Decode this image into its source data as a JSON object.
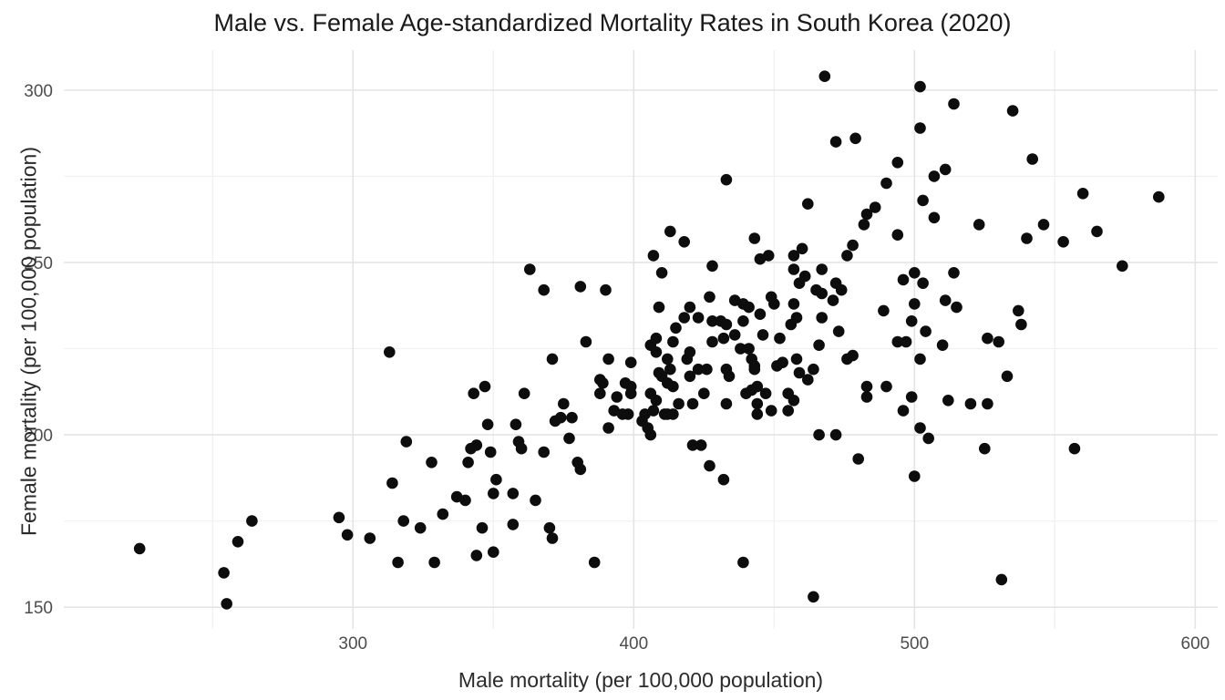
{
  "chart_data": {
    "type": "scatter",
    "title": "Male vs. Female Age-standardized Mortality Rates in South Korea (2020)",
    "xlabel": "Male mortality (per 100,000 population)",
    "ylabel": "Female mortality (per 100,000 population)",
    "xlim": [
      197,
      608
    ],
    "ylim": [
      143.7,
      311.6
    ],
    "x_ticks": [
      300,
      400,
      500,
      600
    ],
    "x_minor_ticks": [
      250,
      350,
      450,
      550
    ],
    "y_ticks": [
      150,
      200,
      250,
      300
    ],
    "y_minor_ticks": [
      175,
      225,
      275
    ],
    "grid": "on",
    "legend_position": "none",
    "point_color": "#0d0d0d",
    "point_radius": 6.3,
    "major_grid_color": "#e4e4e4",
    "minor_grid_color": "#f1f1f1",
    "tick_label_color": "#4d4d4d",
    "tick_font_size": 19,
    "background_color": "#ffffff",
    "points": [
      [
        224,
        167
      ],
      [
        254,
        160
      ],
      [
        255,
        151
      ],
      [
        259,
        169
      ],
      [
        264,
        175
      ],
      [
        295,
        176
      ],
      [
        298,
        171
      ],
      [
        306,
        170
      ],
      [
        313,
        224
      ],
      [
        314,
        186
      ],
      [
        316,
        163
      ],
      [
        318,
        175
      ],
      [
        319,
        198
      ],
      [
        324,
        173
      ],
      [
        328,
        192
      ],
      [
        329,
        163
      ],
      [
        332,
        177
      ],
      [
        337,
        182
      ],
      [
        340,
        181
      ],
      [
        341,
        192
      ],
      [
        342,
        196
      ],
      [
        343,
        212
      ],
      [
        344,
        197
      ],
      [
        344,
        165
      ],
      [
        346,
        173
      ],
      [
        347,
        214
      ],
      [
        348,
        203
      ],
      [
        349,
        195
      ],
      [
        350,
        183
      ],
      [
        350,
        166
      ],
      [
        351,
        187
      ],
      [
        357,
        183
      ],
      [
        357,
        174
      ],
      [
        358,
        203
      ],
      [
        359,
        198
      ],
      [
        360,
        196
      ],
      [
        361,
        212
      ],
      [
        363,
        248
      ],
      [
        365,
        181
      ],
      [
        368,
        242
      ],
      [
        368,
        195
      ],
      [
        370,
        173
      ],
      [
        371,
        222
      ],
      [
        371,
        170
      ],
      [
        372,
        204
      ],
      [
        374,
        205
      ],
      [
        375,
        209
      ],
      [
        377,
        199
      ],
      [
        378,
        205
      ],
      [
        380,
        192
      ],
      [
        381,
        243
      ],
      [
        381,
        190
      ],
      [
        383,
        227
      ],
      [
        386,
        163
      ],
      [
        388,
        216
      ],
      [
        388,
        212
      ],
      [
        389,
        215
      ],
      [
        390,
        242
      ],
      [
        391,
        222
      ],
      [
        391,
        202
      ],
      [
        393,
        207
      ],
      [
        394,
        211
      ],
      [
        396,
        206
      ],
      [
        397,
        215
      ],
      [
        398,
        206
      ],
      [
        399,
        221
      ],
      [
        399,
        214
      ],
      [
        399,
        212
      ],
      [
        403,
        204
      ],
      [
        404,
        206
      ],
      [
        405,
        202
      ],
      [
        406,
        200
      ],
      [
        406,
        226
      ],
      [
        406,
        212
      ],
      [
        407,
        207
      ],
      [
        407,
        252
      ],
      [
        408,
        224
      ],
      [
        408,
        210
      ],
      [
        408,
        228
      ],
      [
        409,
        237
      ],
      [
        409,
        218
      ],
      [
        410,
        247
      ],
      [
        410,
        217
      ],
      [
        411,
        206
      ],
      [
        412,
        222
      ],
      [
        412,
        215
      ],
      [
        412,
        206
      ],
      [
        413,
        259
      ],
      [
        413,
        219
      ],
      [
        414,
        206
      ],
      [
        414,
        227
      ],
      [
        414,
        214
      ],
      [
        415,
        231
      ],
      [
        416,
        209
      ],
      [
        418,
        256
      ],
      [
        418,
        234
      ],
      [
        419,
        222
      ],
      [
        420,
        237
      ],
      [
        420,
        224
      ],
      [
        420,
        217
      ],
      [
        421,
        209
      ],
      [
        421,
        197
      ],
      [
        423,
        234
      ],
      [
        423,
        219
      ],
      [
        424,
        197
      ],
      [
        425,
        212
      ],
      [
        426,
        219
      ],
      [
        427,
        240
      ],
      [
        427,
        191
      ],
      [
        428,
        249
      ],
      [
        428,
        233
      ],
      [
        428,
        227
      ],
      [
        431,
        233
      ],
      [
        432,
        228
      ],
      [
        432,
        187
      ],
      [
        433,
        274
      ],
      [
        433,
        232
      ],
      [
        433,
        219
      ],
      [
        433,
        209
      ],
      [
        434,
        217
      ],
      [
        436,
        239
      ],
      [
        436,
        229
      ],
      [
        438,
        225
      ],
      [
        439,
        238
      ],
      [
        439,
        233
      ],
      [
        439,
        163
      ],
      [
        440,
        212
      ],
      [
        441,
        237
      ],
      [
        441,
        225
      ],
      [
        442,
        222
      ],
      [
        442,
        213
      ],
      [
        443,
        257
      ],
      [
        443,
        220
      ],
      [
        443,
        219
      ],
      [
        444,
        214
      ],
      [
        444,
        209
      ],
      [
        444,
        206
      ],
      [
        445,
        251
      ],
      [
        445,
        235
      ],
      [
        446,
        229
      ],
      [
        447,
        212
      ],
      [
        448,
        252
      ],
      [
        449,
        240
      ],
      [
        449,
        207
      ],
      [
        450,
        238
      ],
      [
        451,
        220
      ],
      [
        452,
        228
      ],
      [
        453,
        221
      ],
      [
        455,
        212
      ],
      [
        455,
        207
      ],
      [
        456,
        232
      ],
      [
        457,
        252
      ],
      [
        457,
        248
      ],
      [
        457,
        238
      ],
      [
        457,
        210
      ],
      [
        458,
        234
      ],
      [
        458,
        222
      ],
      [
        459,
        244
      ],
      [
        459,
        218
      ],
      [
        460,
        254
      ],
      [
        461,
        246
      ],
      [
        462,
        267
      ],
      [
        462,
        216
      ],
      [
        464,
        219
      ],
      [
        464,
        153
      ],
      [
        465,
        242
      ],
      [
        466,
        226
      ],
      [
        466,
        200
      ],
      [
        467,
        248
      ],
      [
        467,
        241
      ],
      [
        467,
        234
      ],
      [
        468,
        304
      ],
      [
        471,
        239
      ],
      [
        472,
        285
      ],
      [
        472,
        244
      ],
      [
        472,
        200
      ],
      [
        473,
        230
      ],
      [
        474,
        242
      ],
      [
        476,
        252
      ],
      [
        476,
        222
      ],
      [
        478,
        255
      ],
      [
        478,
        223
      ],
      [
        479,
        286
      ],
      [
        480,
        193
      ],
      [
        482,
        261
      ],
      [
        483,
        264
      ],
      [
        483,
        214
      ],
      [
        483,
        211
      ],
      [
        486,
        266
      ],
      [
        489,
        236
      ],
      [
        490,
        273
      ],
      [
        490,
        214
      ],
      [
        494,
        279
      ],
      [
        494,
        258
      ],
      [
        494,
        227
      ],
      [
        496,
        245
      ],
      [
        496,
        207
      ],
      [
        497,
        227
      ],
      [
        499,
        233
      ],
      [
        499,
        211
      ],
      [
        500,
        247
      ],
      [
        500,
        238
      ],
      [
        500,
        188
      ],
      [
        502,
        301
      ],
      [
        502,
        289
      ],
      [
        502,
        222
      ],
      [
        502,
        202
      ],
      [
        503,
        268
      ],
      [
        503,
        244
      ],
      [
        504,
        230
      ],
      [
        505,
        199
      ],
      [
        507,
        275
      ],
      [
        507,
        263
      ],
      [
        510,
        226
      ],
      [
        511,
        277
      ],
      [
        511,
        239
      ],
      [
        512,
        210
      ],
      [
        514,
        296
      ],
      [
        514,
        247
      ],
      [
        515,
        237
      ],
      [
        520,
        209
      ],
      [
        523,
        261
      ],
      [
        525,
        196
      ],
      [
        526,
        228
      ],
      [
        526,
        209
      ],
      [
        530,
        227
      ],
      [
        531,
        158
      ],
      [
        533,
        217
      ],
      [
        535,
        294
      ],
      [
        537,
        236
      ],
      [
        538,
        232
      ],
      [
        540,
        257
      ],
      [
        542,
        280
      ],
      [
        546,
        261
      ],
      [
        553,
        256
      ],
      [
        557,
        196
      ],
      [
        560,
        270
      ],
      [
        565,
        259
      ],
      [
        574,
        249
      ],
      [
        587,
        269
      ]
    ]
  }
}
